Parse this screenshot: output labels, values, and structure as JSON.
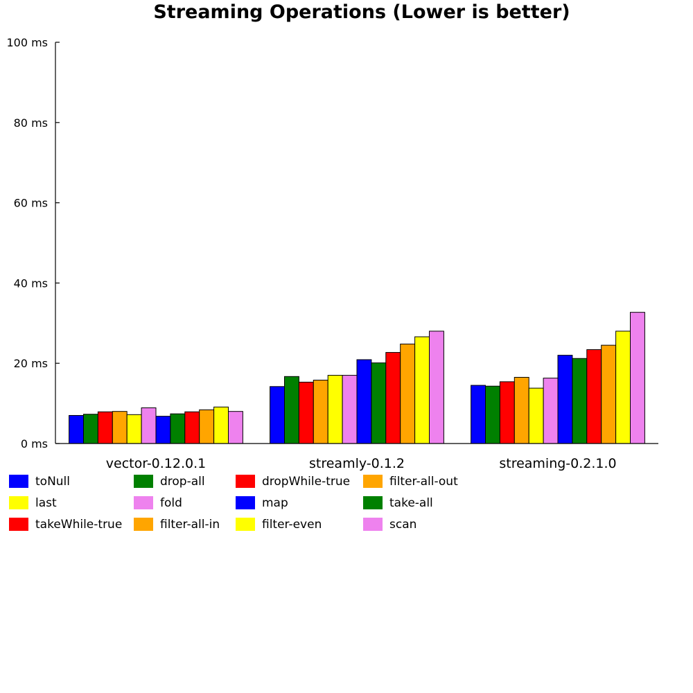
{
  "chart_data": {
    "type": "bar",
    "title": "Streaming Operations (Lower is better)",
    "xlabel": "",
    "ylabel": "",
    "ylim": [
      0,
      100
    ],
    "yticks": [
      "0 ms",
      "20 ms",
      "40 ms",
      "60 ms",
      "80 ms",
      "100 ms"
    ],
    "ytick_values": [
      0,
      20,
      40,
      60,
      80,
      100
    ],
    "grid": false,
    "legend_position": "bottom-left",
    "categories": [
      "vector-0.12.0.1",
      "streamly-0.1.2",
      "streaming-0.2.1.0"
    ],
    "series": [
      {
        "name": "toNull",
        "color": "#0000ff",
        "values": [
          7.0,
          14.2,
          14.5
        ]
      },
      {
        "name": "drop-all",
        "color": "#008000",
        "values": [
          7.3,
          16.7,
          14.3
        ]
      },
      {
        "name": "dropWhile-true",
        "color": "#ff0000",
        "values": [
          7.9,
          15.3,
          15.4
        ]
      },
      {
        "name": "filter-all-out",
        "color": "#ffa500",
        "values": [
          8.0,
          15.8,
          16.5
        ]
      },
      {
        "name": "last",
        "color": "#ffff00",
        "values": [
          7.2,
          17.0,
          13.8
        ]
      },
      {
        "name": "fold",
        "color": "#ee82ee",
        "values": [
          8.9,
          17.0,
          16.3
        ]
      },
      {
        "name": "map",
        "color": "#0000ff",
        "values": [
          6.8,
          20.9,
          22.0
        ]
      },
      {
        "name": "take-all",
        "color": "#008000",
        "values": [
          7.4,
          20.1,
          21.2
        ]
      },
      {
        "name": "takeWhile-true",
        "color": "#ff0000",
        "values": [
          7.9,
          22.7,
          23.4
        ]
      },
      {
        "name": "filter-all-in",
        "color": "#ffa500",
        "values": [
          8.4,
          24.8,
          24.5
        ]
      },
      {
        "name": "filter-even",
        "color": "#ffff00",
        "values": [
          9.1,
          26.6,
          28.0
        ]
      },
      {
        "name": "scan",
        "color": "#ee82ee",
        "values": [
          8.0,
          28.0,
          32.7
        ]
      }
    ]
  }
}
